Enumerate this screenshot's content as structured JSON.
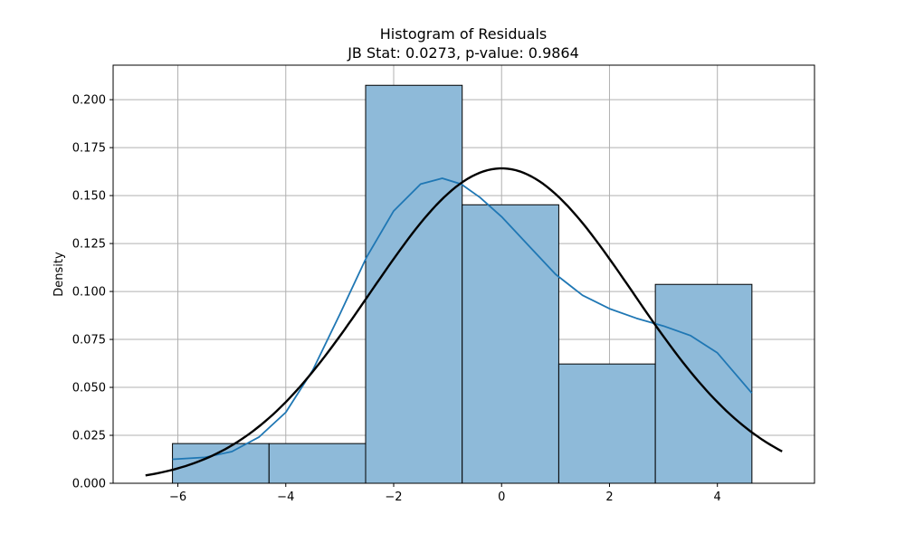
{
  "chart_data": {
    "type": "bar",
    "title": "Histogram of Residuals",
    "subtitle": "JB Stat: 0.0273, p-value: 0.9864",
    "xlabel": "",
    "ylabel": "Density",
    "xlim": [
      -7.2,
      5.8
    ],
    "ylim": [
      0,
      0.218
    ],
    "grid": true,
    "xticks": [
      -6,
      -4,
      -2,
      0,
      2,
      4
    ],
    "xtick_labels": [
      "−6",
      "−4",
      "−2",
      "0",
      "2",
      "4"
    ],
    "yticks": [
      0,
      0.025,
      0.05,
      0.075,
      0.1,
      0.125,
      0.15,
      0.175,
      0.2
    ],
    "ytick_labels": [
      "0.000",
      "0.025",
      "0.050",
      "0.075",
      "0.100",
      "0.125",
      "0.150",
      "0.175",
      "0.200"
    ],
    "bins": [
      {
        "x0": -6.1,
        "x1": -4.31,
        "density": 0.0207
      },
      {
        "x0": -4.31,
        "x1": -2.52,
        "density": 0.0207
      },
      {
        "x0": -2.52,
        "x1": -0.73,
        "density": 0.2075
      },
      {
        "x0": -0.73,
        "x1": 1.06,
        "density": 0.1452
      },
      {
        "x0": 1.06,
        "x1": 2.85,
        "density": 0.0622
      },
      {
        "x0": 2.85,
        "x1": 4.64,
        "density": 0.1037
      }
    ],
    "series": [
      {
        "type": "kde",
        "color": "#1f77b4",
        "x": [
          -6.1,
          -5.5,
          -5.0,
          -4.5,
          -4.0,
          -3.5,
          -3.0,
          -2.5,
          -2.0,
          -1.5,
          -1.1,
          -0.75,
          -0.4,
          0.0,
          0.5,
          1.0,
          1.5,
          2.0,
          2.5,
          3.0,
          3.5,
          4.0,
          4.64
        ],
        "y": [
          0.0125,
          0.0135,
          0.0165,
          0.024,
          0.037,
          0.059,
          0.088,
          0.118,
          0.142,
          0.156,
          0.159,
          0.156,
          0.149,
          0.139,
          0.124,
          0.109,
          0.098,
          0.091,
          0.086,
          0.082,
          0.077,
          0.068,
          0.047
        ]
      },
      {
        "type": "normal-pdf",
        "color": "#000000",
        "mean": 0.0,
        "std": 2.43,
        "x_range": [
          -6.6,
          5.2
        ]
      }
    ],
    "bar_fill": "#8ebad9",
    "bar_edge": "#000000"
  }
}
